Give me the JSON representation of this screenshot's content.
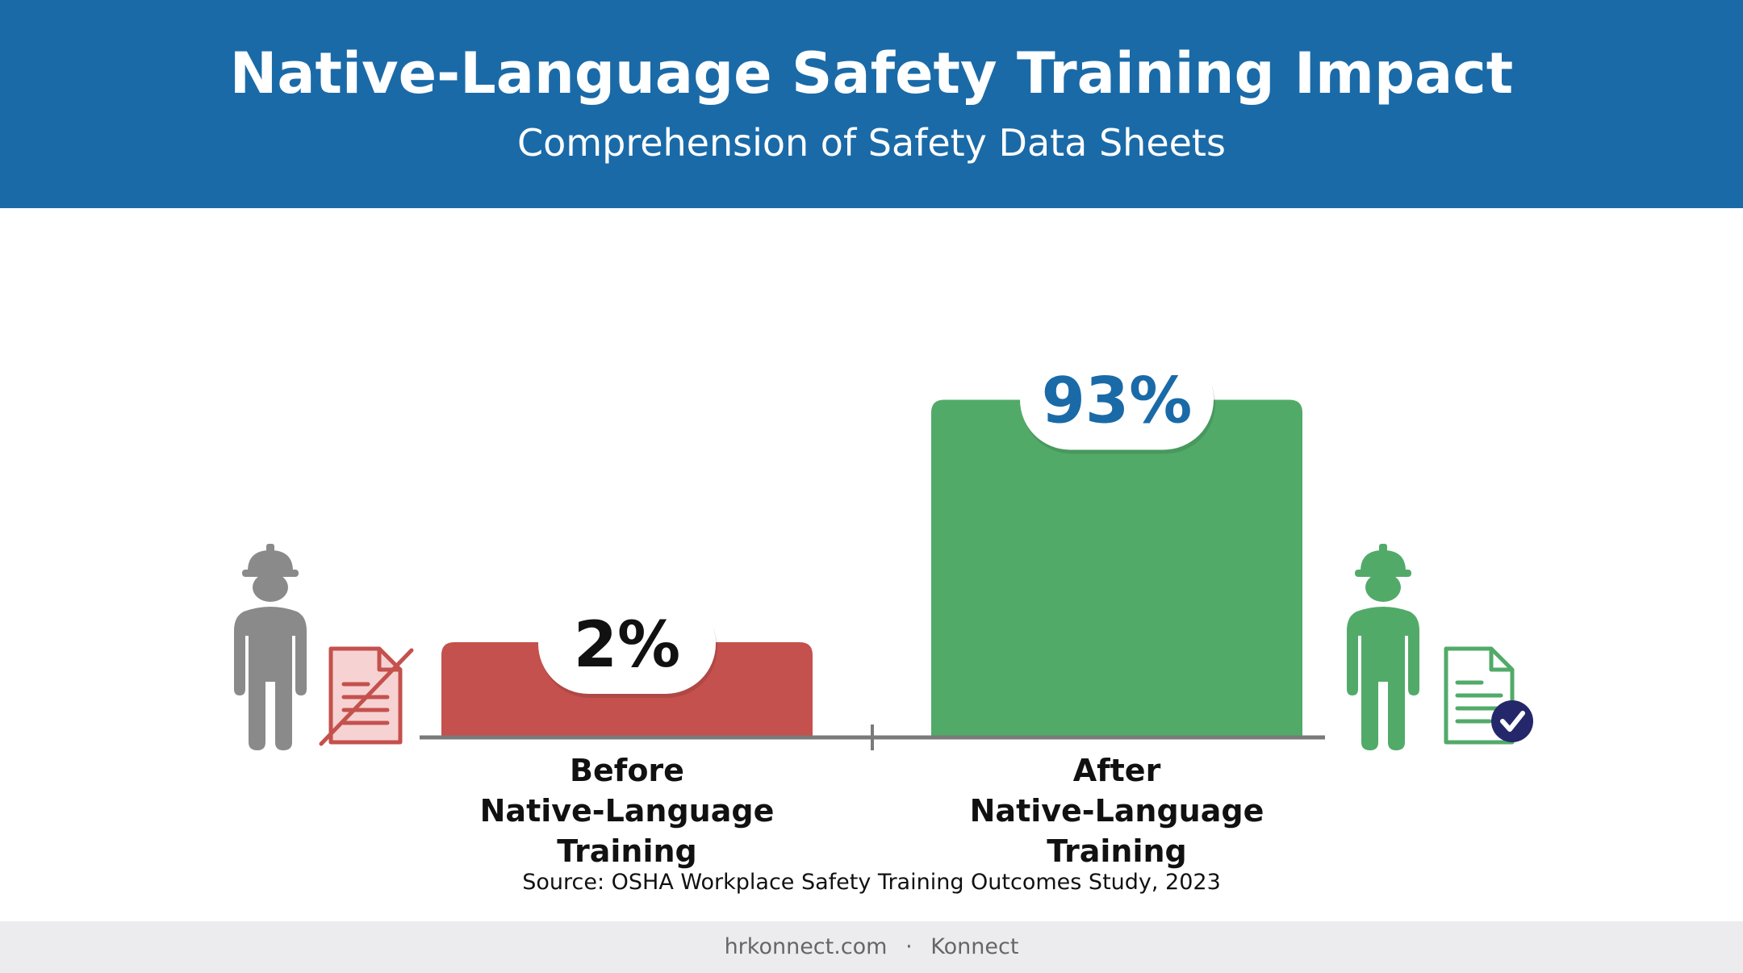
{
  "header": {
    "title": "Native-Language Safety Training Impact",
    "subtitle": "Comprehension of Safety Data Sheets"
  },
  "chart_data": {
    "type": "bar",
    "title": "Native-Language Safety Training Impact",
    "subtitle": "Comprehension of Safety Data Sheets",
    "categories": [
      "Before\nNative-Language Training",
      "After\nNative-Language Training"
    ],
    "values": [
      2,
      93
    ],
    "data_labels": [
      "2%",
      "93%"
    ],
    "unit": "%",
    "colors": [
      "#c4514d",
      "#52aa69"
    ],
    "ylim": [
      0,
      100
    ],
    "grid": false,
    "legend": "none"
  },
  "labels": {
    "before_line1": "Before",
    "before_line2": "Native-Language Training",
    "after_line1": "After",
    "after_line2": "Native-Language Training"
  },
  "source": "Source: OSHA Workplace Safety Training Outcomes Study, 2023",
  "footer": {
    "site": "hrkonnect.com",
    "separator": "·",
    "brand": "Konnect"
  },
  "icons": {
    "left_worker": "worker-hardhat-icon",
    "left_document": "document-crossed-icon",
    "right_worker": "worker-hardhat-icon",
    "right_document": "document-check-icon"
  },
  "colors": {
    "header_bg": "#1a6aa8",
    "label_blue": "#1a6aa8",
    "before_bar": "#c4514d",
    "after_bar": "#52aa69",
    "neutral_icon": "#8a8a8a",
    "check_badge": "#24286a",
    "footer_bg": "#ececee"
  }
}
